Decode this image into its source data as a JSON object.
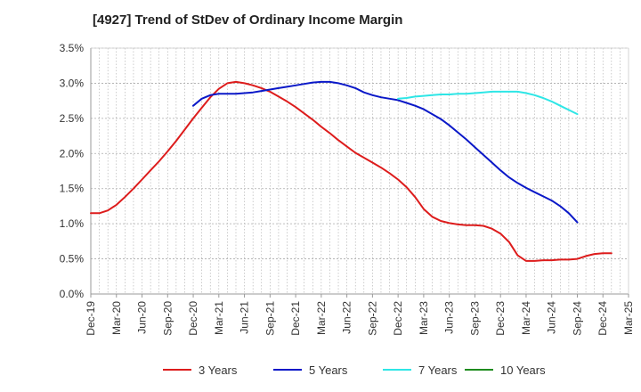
{
  "chart_data": {
    "type": "line",
    "title": "[4927]  Trend of StDev of Ordinary Income Margin",
    "xlabel": "",
    "ylabel": "",
    "x_ticks": [
      "Dec-19",
      "Mar-20",
      "Jun-20",
      "Sep-20",
      "Dec-20",
      "Mar-21",
      "Jun-21",
      "Sep-21",
      "Dec-21",
      "Mar-22",
      "Jun-22",
      "Sep-22",
      "Dec-22",
      "Mar-23",
      "Jun-23",
      "Sep-23",
      "Dec-23",
      "Mar-24",
      "Jun-24",
      "Sep-24",
      "Dec-24",
      "Mar-25"
    ],
    "y_ticks": [
      "0.0%",
      "0.5%",
      "1.0%",
      "1.5%",
      "2.0%",
      "2.5%",
      "3.0%",
      "3.5%"
    ],
    "ylim": [
      0,
      3.5
    ],
    "y_unit": "%",
    "grid": true,
    "legend_position": "bottom",
    "series": [
      {
        "name": "3 Years",
        "color": "#dd1c1c",
        "points": [
          [
            "Dec-19",
            1.15
          ],
          [
            "Jan-20",
            1.15
          ],
          [
            "Feb-20",
            1.19
          ],
          [
            "Mar-20",
            1.27
          ],
          [
            "Apr-20",
            1.38
          ],
          [
            "May-20",
            1.5
          ],
          [
            "Jun-20",
            1.63
          ],
          [
            "Jul-20",
            1.76
          ],
          [
            "Aug-20",
            1.89
          ],
          [
            "Sep-20",
            2.03
          ],
          [
            "Oct-20",
            2.18
          ],
          [
            "Nov-20",
            2.34
          ],
          [
            "Dec-20",
            2.5
          ],
          [
            "Jan-21",
            2.65
          ],
          [
            "Feb-21",
            2.8
          ],
          [
            "Mar-21",
            2.92
          ],
          [
            "Apr-21",
            3.0
          ],
          [
            "May-21",
            3.02
          ],
          [
            "Jun-21",
            3.0
          ],
          [
            "Jul-21",
            2.97
          ],
          [
            "Aug-21",
            2.93
          ],
          [
            "Sep-21",
            2.88
          ],
          [
            "Oct-21",
            2.81
          ],
          [
            "Nov-21",
            2.74
          ],
          [
            "Dec-21",
            2.66
          ],
          [
            "Jan-22",
            2.57
          ],
          [
            "Feb-22",
            2.48
          ],
          [
            "Mar-22",
            2.38
          ],
          [
            "Apr-22",
            2.29
          ],
          [
            "May-22",
            2.19
          ],
          [
            "Jun-22",
            2.1
          ],
          [
            "Jul-22",
            2.01
          ],
          [
            "Aug-22",
            1.94
          ],
          [
            "Sep-22",
            1.87
          ],
          [
            "Oct-22",
            1.8
          ],
          [
            "Nov-22",
            1.72
          ],
          [
            "Dec-22",
            1.63
          ],
          [
            "Jan-23",
            1.52
          ],
          [
            "Feb-23",
            1.38
          ],
          [
            "Mar-23",
            1.21
          ],
          [
            "Apr-23",
            1.1
          ],
          [
            "May-23",
            1.04
          ],
          [
            "Jun-23",
            1.01
          ],
          [
            "Jul-23",
            0.99
          ],
          [
            "Aug-23",
            0.98
          ],
          [
            "Sep-23",
            0.98
          ],
          [
            "Oct-23",
            0.97
          ],
          [
            "Nov-23",
            0.93
          ],
          [
            "Dec-23",
            0.86
          ],
          [
            "Jan-24",
            0.74
          ],
          [
            "Feb-24",
            0.55
          ],
          [
            "Mar-24",
            0.47
          ],
          [
            "Apr-24",
            0.47
          ],
          [
            "May-24",
            0.48
          ],
          [
            "Jun-24",
            0.48
          ],
          [
            "Jul-24",
            0.49
          ],
          [
            "Aug-24",
            0.49
          ],
          [
            "Sep-24",
            0.5
          ],
          [
            "Oct-24",
            0.54
          ],
          [
            "Nov-24",
            0.57
          ],
          [
            "Dec-24",
            0.58
          ],
          [
            "Jan-25",
            0.58
          ]
        ]
      },
      {
        "name": "5 Years",
        "color": "#0a18c8",
        "points": [
          [
            "Dec-20",
            2.68
          ],
          [
            "Jan-21",
            2.78
          ],
          [
            "Feb-21",
            2.83
          ],
          [
            "Mar-21",
            2.85
          ],
          [
            "Apr-21",
            2.85
          ],
          [
            "May-21",
            2.85
          ],
          [
            "Jun-21",
            2.86
          ],
          [
            "Jul-21",
            2.87
          ],
          [
            "Aug-21",
            2.89
          ],
          [
            "Sep-21",
            2.91
          ],
          [
            "Oct-21",
            2.93
          ],
          [
            "Nov-21",
            2.95
          ],
          [
            "Dec-21",
            2.97
          ],
          [
            "Jan-22",
            2.99
          ],
          [
            "Feb-22",
            3.01
          ],
          [
            "Mar-22",
            3.02
          ],
          [
            "Apr-22",
            3.02
          ],
          [
            "May-22",
            3.0
          ],
          [
            "Jun-22",
            2.97
          ],
          [
            "Jul-22",
            2.93
          ],
          [
            "Aug-22",
            2.87
          ],
          [
            "Sep-22",
            2.83
          ],
          [
            "Oct-22",
            2.8
          ],
          [
            "Nov-22",
            2.78
          ],
          [
            "Dec-22",
            2.76
          ],
          [
            "Jan-23",
            2.72
          ],
          [
            "Feb-23",
            2.68
          ],
          [
            "Mar-23",
            2.63
          ],
          [
            "Apr-23",
            2.56
          ],
          [
            "May-23",
            2.49
          ],
          [
            "Jun-23",
            2.4
          ],
          [
            "Jul-23",
            2.3
          ],
          [
            "Aug-23",
            2.2
          ],
          [
            "Sep-23",
            2.09
          ],
          [
            "Oct-23",
            1.98
          ],
          [
            "Nov-23",
            1.87
          ],
          [
            "Dec-23",
            1.76
          ],
          [
            "Jan-24",
            1.66
          ],
          [
            "Feb-24",
            1.58
          ],
          [
            "Mar-24",
            1.51
          ],
          [
            "Apr-24",
            1.45
          ],
          [
            "May-24",
            1.39
          ],
          [
            "Jun-24",
            1.33
          ],
          [
            "Jul-24",
            1.25
          ],
          [
            "Aug-24",
            1.15
          ],
          [
            "Sep-24",
            1.02
          ]
        ]
      },
      {
        "name": "7 Years",
        "color": "#2ee6e6",
        "points": [
          [
            "Dec-22",
            2.78
          ],
          [
            "Jan-23",
            2.79
          ],
          [
            "Feb-23",
            2.81
          ],
          [
            "Mar-23",
            2.82
          ],
          [
            "Apr-23",
            2.83
          ],
          [
            "May-23",
            2.84
          ],
          [
            "Jun-23",
            2.84
          ],
          [
            "Jul-23",
            2.85
          ],
          [
            "Aug-23",
            2.85
          ],
          [
            "Sep-23",
            2.86
          ],
          [
            "Oct-23",
            2.87
          ],
          [
            "Nov-23",
            2.88
          ],
          [
            "Dec-23",
            2.88
          ],
          [
            "Jan-24",
            2.88
          ],
          [
            "Feb-24",
            2.88
          ],
          [
            "Mar-24",
            2.86
          ],
          [
            "Apr-24",
            2.83
          ],
          [
            "May-24",
            2.79
          ],
          [
            "Jun-24",
            2.74
          ],
          [
            "Jul-24",
            2.68
          ],
          [
            "Aug-24",
            2.62
          ],
          [
            "Sep-24",
            2.56
          ]
        ]
      },
      {
        "name": "10 Years",
        "color": "#1e8c1e",
        "points": []
      }
    ]
  }
}
